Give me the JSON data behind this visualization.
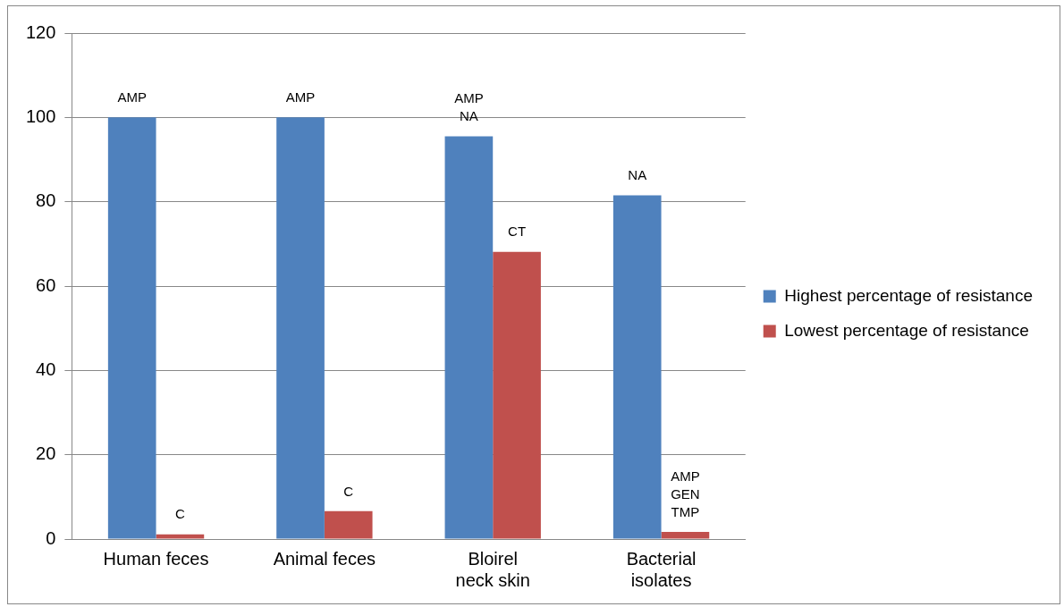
{
  "chart_data": {
    "type": "bar",
    "categories": [
      "Human feces",
      "Animal feces",
      "Bloirel neck skin",
      "Bacterial isolates"
    ],
    "series": [
      {
        "name": "Highest percentage of resistance",
        "color": "#4f81bd",
        "values": [
          100,
          100,
          95.5,
          81.5
        ],
        "value_labels": [
          "AMP",
          "AMP",
          "AMP\nNA",
          "NA"
        ]
      },
      {
        "name": "Lowest percentage of resistance",
        "color": "#c0504d",
        "values": [
          1.1,
          6.6,
          68.1,
          1.7
        ],
        "value_labels": [
          "C",
          "C",
          "CT",
          "AMP\nGEN\nTMP"
        ]
      }
    ],
    "ylim": [
      0,
      120
    ],
    "yticks": [
      0,
      20,
      40,
      60,
      80,
      100,
      120
    ],
    "grid": "y",
    "legend": "right"
  }
}
